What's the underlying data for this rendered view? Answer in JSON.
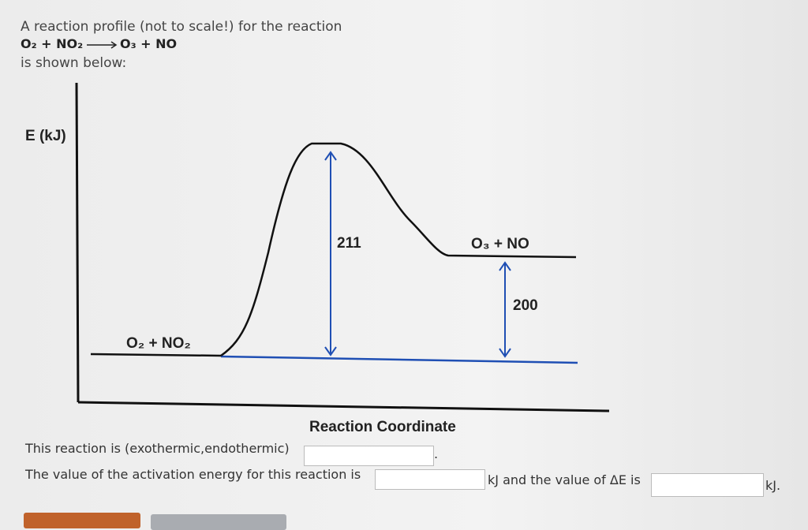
{
  "intro": {
    "line1": "A reaction profile (not to scale!) for the reaction",
    "reactants": "O₂ + NO₂",
    "products": "O₃ + NO",
    "line3": "is shown below:"
  },
  "diagram": {
    "y_axis_label": "E (kJ)",
    "x_axis_label": "Reaction Coordinate",
    "reactant_label": "O₂ + NO₂",
    "product_label": "O₃ + NO",
    "activation_label": "211",
    "delta_label": "200"
  },
  "questions": {
    "q1_text": "This reaction is (exothermic,endothermic)",
    "q1_end": ".",
    "q2_text": "The value of the activation energy for this reaction is",
    "q2_mid": "kJ and the value of ΔE is",
    "q2_end": "kJ."
  }
}
